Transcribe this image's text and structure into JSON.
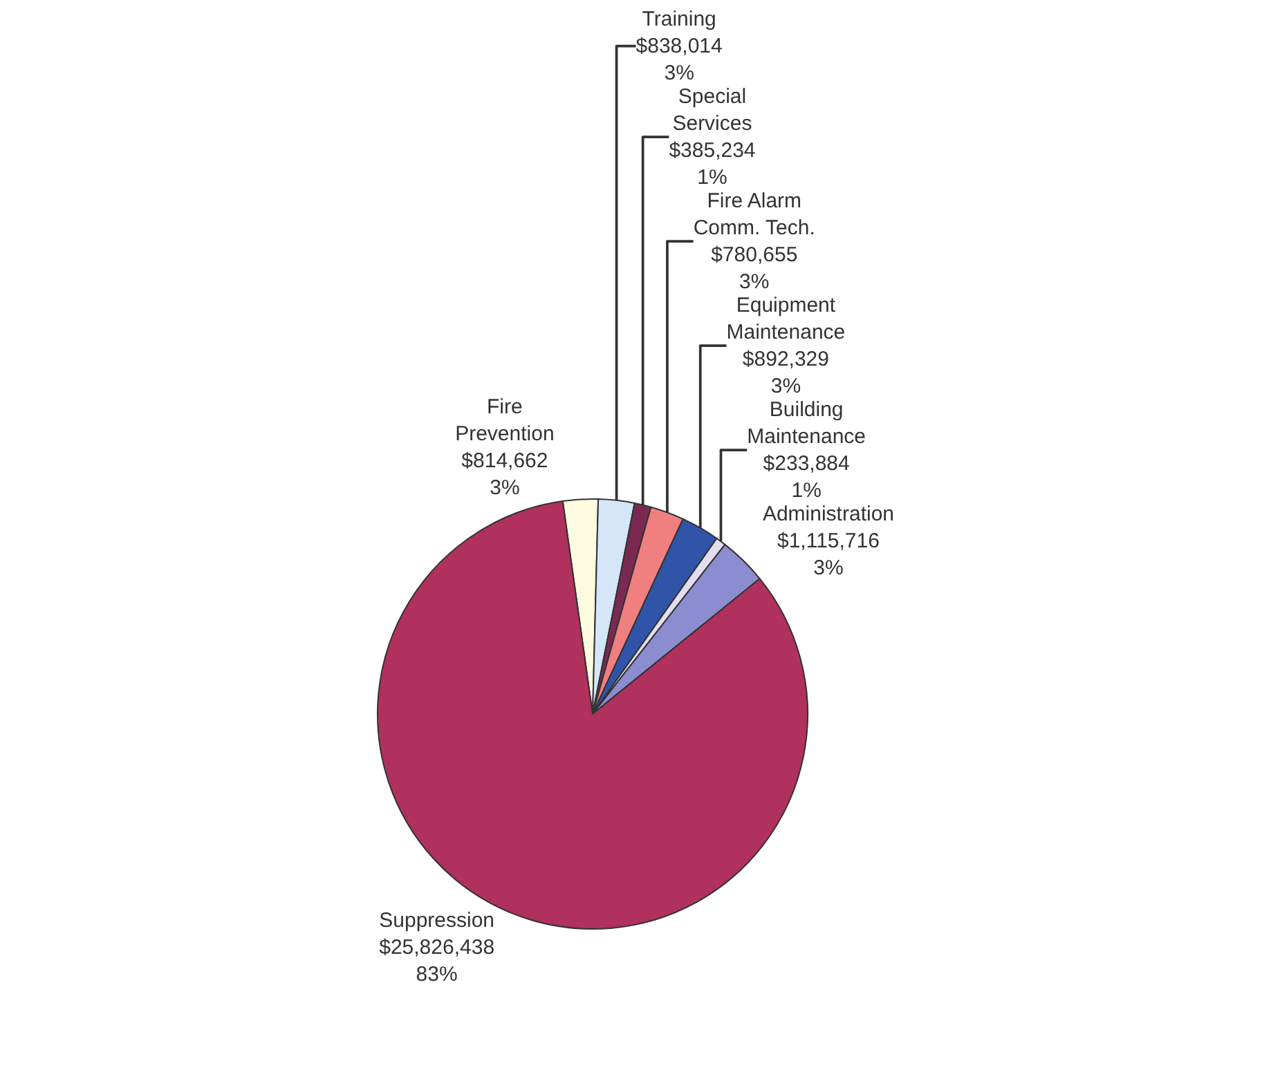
{
  "chart_data": {
    "type": "pie",
    "categories": [
      "Fire Prevention",
      "Training",
      "Special Services",
      "Fire Alarm Comm. Tech.",
      "Equipment Maintenance",
      "Building Maintenance",
      "Administration",
      "Suppression"
    ],
    "values": [
      814662,
      838014,
      385234,
      780655,
      892329,
      233884,
      1115716,
      25826438
    ],
    "value_labels": [
      "$814,662\n3%",
      "$838,014\n3%",
      "$385,234\n1%",
      "$780,655\n3%",
      "$892,329\n3%",
      "$233,884\n1%",
      "$1,115,716\n3%",
      "$25,826,438\n83%"
    ],
    "colors": [
      "#fffbe0",
      "#d4e6f8",
      "#7a2a52",
      "#f08080",
      "#3054a8",
      "#e4ddf0",
      "#8c8cd0",
      "#b0305e"
    ]
  }
}
